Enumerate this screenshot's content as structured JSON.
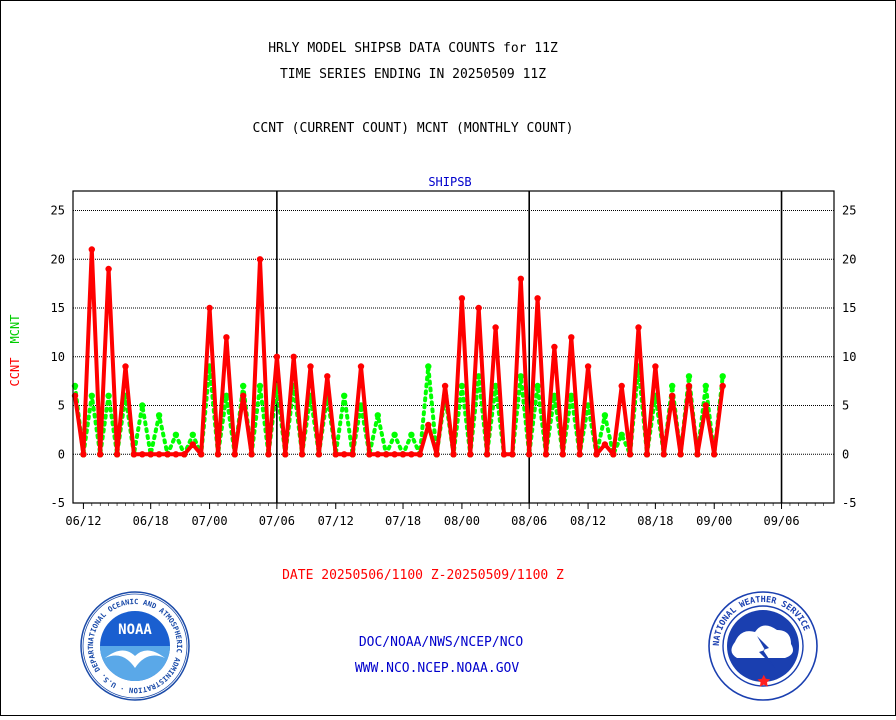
{
  "header": {
    "title_line1": "HRLY MODEL SHIPSB DATA COUNTS for 11Z",
    "title_line2": "TIME SERIES ENDING IN 20250509 11Z",
    "subtitle": "CCNT (CURRENT COUNT) MCNT (MONTHLY COUNT)"
  },
  "chart_data": {
    "type": "line",
    "title": "SHIPSB",
    "ylabel_ccnt": "CCNT",
    "ylabel_mcnt": "MCNT",
    "ylim": [
      -5,
      27
    ],
    "yticks": [
      -5,
      0,
      5,
      10,
      15,
      20,
      25
    ],
    "xlim": [
      0,
      90
    ],
    "x_ticks": [
      {
        "x": 1,
        "label": "06/12"
      },
      {
        "x": 9,
        "label": "06/18"
      },
      {
        "x": 16,
        "label": "07/00"
      },
      {
        "x": 24,
        "label": "07/06"
      },
      {
        "x": 31,
        "label": "07/12"
      },
      {
        "x": 39,
        "label": "07/18"
      },
      {
        "x": 46,
        "label": "08/00"
      },
      {
        "x": 54,
        "label": "08/06"
      },
      {
        "x": 61,
        "label": "08/12"
      },
      {
        "x": 69,
        "label": "08/18"
      },
      {
        "x": 76,
        "label": "09/00"
      },
      {
        "x": 84,
        "label": "09/06"
      }
    ],
    "day_boundaries": [
      24,
      54,
      84
    ],
    "grid": true,
    "series": [
      {
        "name": "CCNT",
        "color": "#ff0000",
        "values": [
          6,
          0,
          21,
          0,
          19,
          0,
          9,
          0,
          0,
          0,
          0,
          0,
          0,
          0,
          1,
          0,
          15,
          0,
          12,
          0,
          6,
          0,
          20,
          0,
          10,
          0,
          10,
          0,
          9,
          0,
          8,
          0,
          0,
          0,
          9,
          0,
          0,
          0,
          0,
          0,
          0,
          0,
          3,
          0,
          7,
          0,
          16,
          0,
          15,
          0,
          13,
          0,
          0,
          18,
          0,
          16,
          0,
          11,
          0,
          12,
          0,
          9,
          0,
          1,
          0,
          7,
          0,
          13,
          0,
          9,
          0,
          6,
          0,
          7,
          0,
          5,
          0,
          7
        ]
      },
      {
        "name": "MCNT",
        "color": "#00ff00",
        "values": [
          7,
          0,
          6,
          0,
          6,
          0,
          6,
          0,
          5,
          0,
          4,
          0,
          2,
          0,
          2,
          0,
          9,
          0,
          6,
          0,
          7,
          0,
          7,
          0,
          7,
          0,
          7,
          0,
          6,
          0,
          6,
          0,
          6,
          0,
          5,
          0,
          4,
          0,
          2,
          0,
          2,
          0,
          9,
          0,
          6,
          0,
          7,
          0,
          8,
          0,
          7,
          0,
          0,
          8,
          0,
          7,
          0,
          6,
          0,
          6,
          0,
          5,
          0,
          4,
          0,
          2,
          0,
          9,
          0,
          6,
          0,
          7,
          0,
          8,
          0,
          7,
          0,
          8
        ]
      }
    ]
  },
  "date_range": "DATE 20250506/1100 Z-20250509/1100 Z",
  "footer": {
    "org_line": "DOC/NOAA/NWS/NCEP/NCO",
    "url": "WWW.NCO.NCEP.NOAA.GOV"
  },
  "logos": {
    "noaa_text": "NOAA",
    "noaa_ring": "NATIONAL OCEANIC AND ATMOSPHERIC ADMINISTRATION · U.S. DEPARTMENT OF COMMERCE ·",
    "nws_ring": "NATIONAL WEATHER SERVICE"
  },
  "colors": {
    "ccnt": "#ff0000",
    "mcnt": "#00ff00",
    "title_blue": "#0000cc",
    "date_red": "#ff0000",
    "noaa_blue": "#1a4aa8",
    "nws_blue": "#1a3fb0"
  }
}
